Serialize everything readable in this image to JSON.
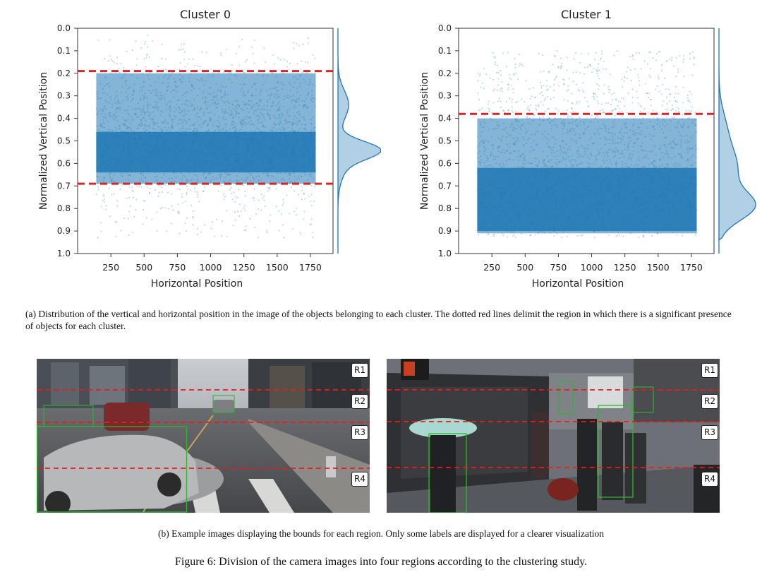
{
  "chart_data": [
    {
      "type": "scatter",
      "title": "Cluster 0",
      "xlabel": "Horizontal Position",
      "ylabel": "Normalized Vertical Position",
      "xticks": [
        250,
        500,
        750,
        1000,
        1250,
        1500,
        1750
      ],
      "yticks": [
        "0.0",
        "0.1",
        "0.2",
        "0.3",
        "0.4",
        "0.5",
        "0.6",
        "0.7",
        "0.8",
        "0.9",
        "1.0"
      ],
      "xlim": [
        0,
        1920
      ],
      "ylim": [
        1.0,
        0.0
      ],
      "y_inverted": true,
      "grid": false,
      "dense_x_range": [
        140,
        1790
      ],
      "dense_y_range": [
        0.2,
        0.69
      ],
      "core_y_range": [
        0.46,
        0.64
      ],
      "threshold_lines_y": [
        0.19,
        0.69
      ],
      "threshold_style": "red dashed",
      "point_color": "#1f77b4",
      "marginal_density_peak_y": 0.54
    },
    {
      "type": "scatter",
      "title": "Cluster 1",
      "xlabel": "Horizontal Position",
      "ylabel": "Normalized Vertical Position",
      "xticks": [
        250,
        500,
        750,
        1000,
        1250,
        1500,
        1750
      ],
      "yticks": [
        "0.0",
        "0.1",
        "0.2",
        "0.3",
        "0.4",
        "0.5",
        "0.6",
        "0.7",
        "0.8",
        "0.9",
        "1.0"
      ],
      "xlim": [
        0,
        1920
      ],
      "ylim": [
        1.0,
        0.0
      ],
      "y_inverted": true,
      "grid": false,
      "dense_x_range": [
        140,
        1790
      ],
      "dense_y_range": [
        0.4,
        0.91
      ],
      "core_y_range": [
        0.62,
        0.9
      ],
      "threshold_lines_y": [
        0.38
      ],
      "threshold_style": "red dashed",
      "point_color": "#1f77b4",
      "marginal_density_peak_y": 0.79
    }
  ],
  "caption_a": "(a) Distribution of the vertical and horizontal position in the image of the objects belonging to each cluster. The dotted red lines delimit the region in which there is a significant presence of objects for each cluster.",
  "caption_b": "(b) Example images displaying the bounds for each region. Only some labels are displayed for a clearer visualization",
  "figure_caption": "Figure 6: Division of the camera images into four regions according to the clustering study.",
  "example_images": [
    {
      "description_free": true,
      "regions": [
        "R1",
        "R2",
        "R3",
        "R4"
      ]
    },
    {
      "description_free": true,
      "regions": [
        "R1",
        "R2",
        "R3",
        "R4"
      ]
    }
  ]
}
